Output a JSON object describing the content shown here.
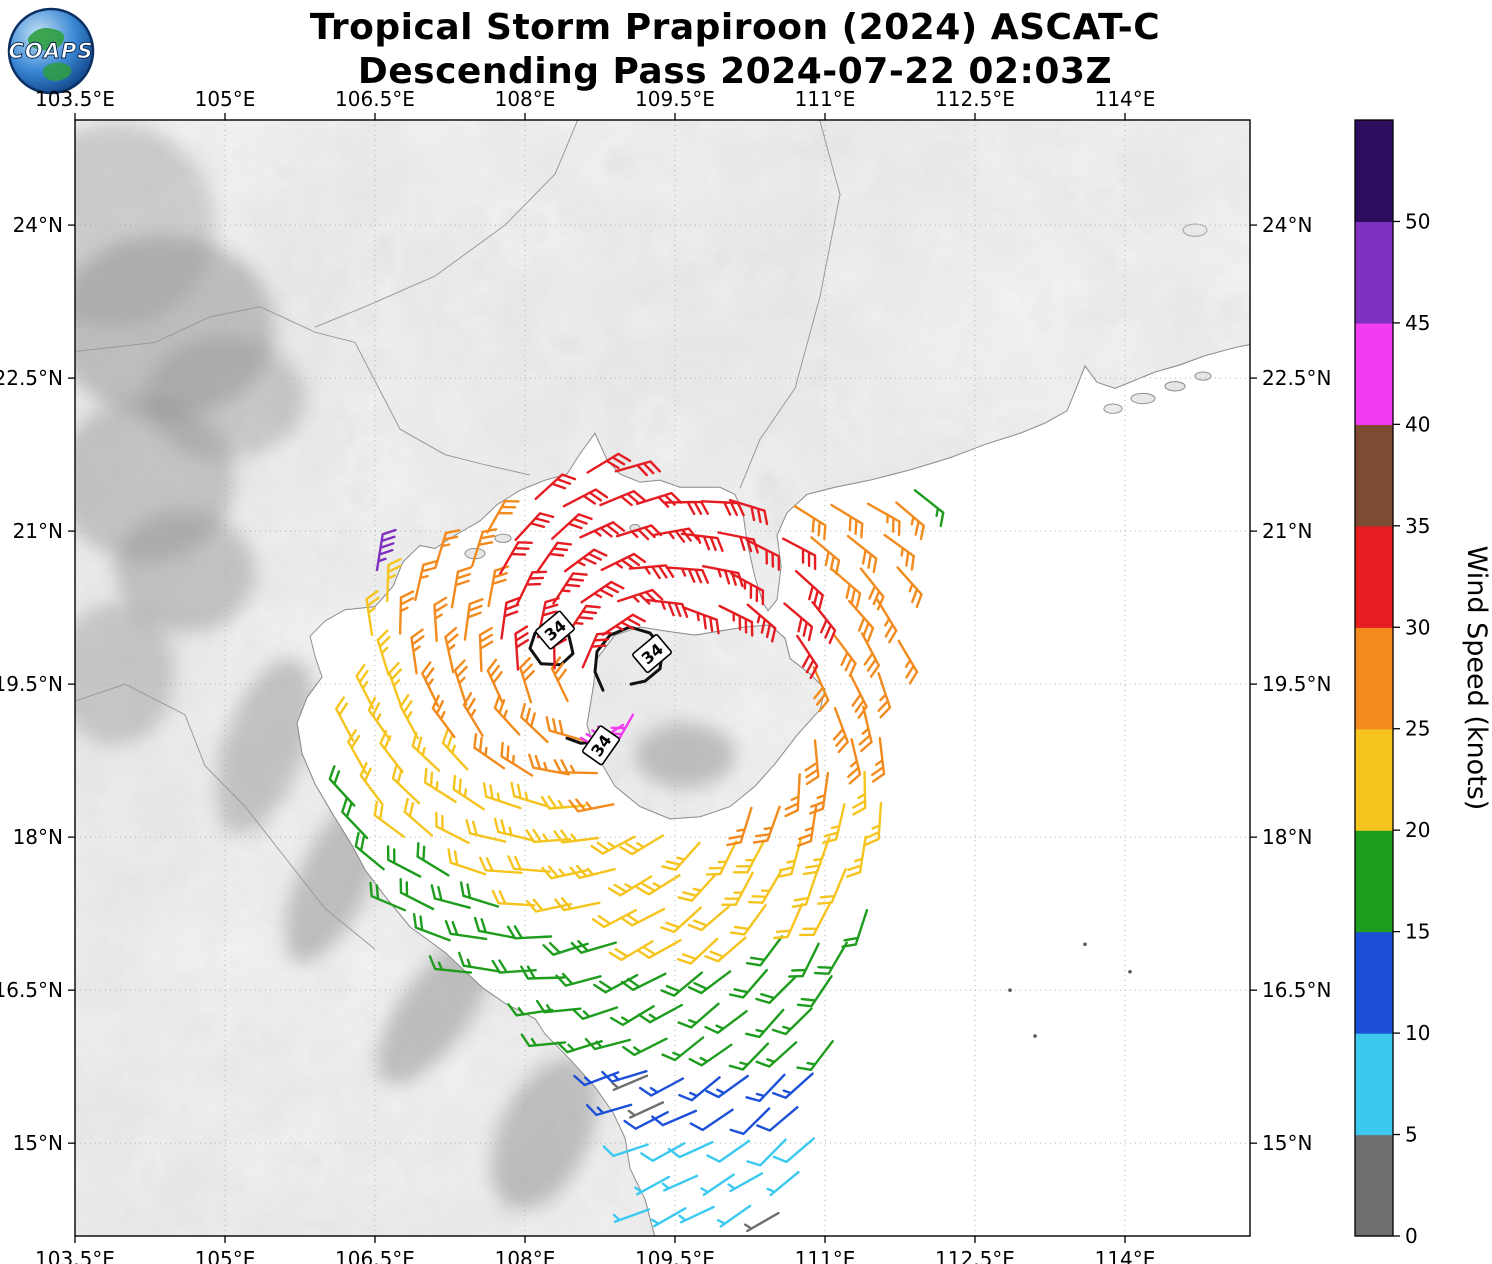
{
  "title": {
    "line1": "Tropical Storm Prapiroon (2024) ASCAT-C",
    "line2": "Descending Pass 2024-07-22 02:03Z"
  },
  "logo": {
    "text": "COAPS"
  },
  "map": {
    "lon_min": 103.5,
    "lon_max": 115.25,
    "lat_min": 14.09,
    "lat_max": 25.03,
    "x_ticks": [
      {
        "lon": 103.5,
        "label": "103.5°E"
      },
      {
        "lon": 105,
        "label": "105°E"
      },
      {
        "lon": 106.5,
        "label": "106.5°E"
      },
      {
        "lon": 108,
        "label": "108°E"
      },
      {
        "lon": 109.5,
        "label": "109.5°E"
      },
      {
        "lon": 111,
        "label": "111°E"
      },
      {
        "lon": 112.5,
        "label": "112.5°E"
      },
      {
        "lon": 114,
        "label": "114°E"
      }
    ],
    "y_ticks": [
      {
        "lat": 24,
        "label": "24°N"
      },
      {
        "lat": 22.5,
        "label": "22.5°N"
      },
      {
        "lat": 21,
        "label": "21°N"
      },
      {
        "lat": 19.5,
        "label": "19.5°N"
      },
      {
        "lat": 18,
        "label": "18°N"
      },
      {
        "lat": 16.5,
        "label": "16.5°N"
      },
      {
        "lat": 15,
        "label": "15°N"
      }
    ]
  },
  "colorbar": {
    "label": "Wind Speed (knots)",
    "max": 55,
    "ticks": [
      0,
      5,
      10,
      15,
      20,
      25,
      30,
      35,
      40,
      45,
      50
    ],
    "segments": [
      {
        "from": 0,
        "to": 5,
        "color": "#6e6e6e"
      },
      {
        "from": 5,
        "to": 10,
        "color": "#3CC9F0"
      },
      {
        "from": 10,
        "to": 15,
        "color": "#1D50D8"
      },
      {
        "from": 15,
        "to": 20,
        "color": "#1E9C1E"
      },
      {
        "from": 20,
        "to": 25,
        "color": "#F5C41E"
      },
      {
        "from": 25,
        "to": 30,
        "color": "#F28A1E"
      },
      {
        "from": 30,
        "to": 35,
        "color": "#E51D23"
      },
      {
        "from": 35,
        "to": 40,
        "color": "#7D4A32"
      },
      {
        "from": 40,
        "to": 45,
        "color": "#F23CF2"
      },
      {
        "from": 45,
        "to": 50,
        "color": "#8030C0"
      },
      {
        "from": 50,
        "to": 55,
        "color": "#2E0D5E"
      }
    ]
  },
  "chart_data": {
    "type": "wind_barb_map",
    "title": "Tropical Storm Prapiroon (2024) ASCAT-C — Descending Pass 2024-07-22 02:03Z",
    "satellite": "ASCAT-C",
    "units": "knots",
    "storm": {
      "name": "Prapiroon",
      "season": 2024,
      "center_lon": 108.9,
      "center_lat": 19.4
    },
    "wind_contour_knots": 34,
    "wind_profile": [
      {
        "r": 0,
        "kt": 30
      },
      {
        "r": 0.8,
        "kt": 32
      },
      {
        "r": 1.6,
        "kt": 29
      },
      {
        "r": 2.4,
        "kt": 25.5
      },
      {
        "r": 3.2,
        "kt": 22
      },
      {
        "r": 4.0,
        "kt": 19
      },
      {
        "r": 4.8,
        "kt": 14
      },
      {
        "r": 5.6,
        "kt": 10
      },
      {
        "r": 6.4,
        "kt": 7
      },
      {
        "r": 8,
        "kt": 5
      }
    ],
    "swath": {
      "lat_min": 14.35,
      "lat_max": 21.72,
      "dlat": 0.33,
      "lon_min": 105.95,
      "lon_max": 112.1,
      "dlon": 0.33,
      "left_edge": 106.28,
      "right_top": 111.95,
      "right_mid": 111.58
    },
    "extra_barbs": [
      {
        "lon": 108.98,
        "lat": 19.1,
        "speed": 42
      },
      {
        "lon": 109.08,
        "lat": 19.2,
        "speed": 41
      },
      {
        "lon": 106.52,
        "lat": 20.62,
        "speed": 46
      },
      {
        "lon": 111.9,
        "lat": 21.4,
        "speed": 17
      },
      {
        "lon": 109.22,
        "lat": 15.66,
        "speed": 3
      },
      {
        "lon": 109.38,
        "lat": 15.4,
        "speed": 4
      }
    ],
    "contours": {
      "paths": [
        {
          "closed": true,
          "points": [
            [
              108.05,
              19.85
            ],
            [
              108.1,
              20.0
            ],
            [
              108.28,
              20.06
            ],
            [
              108.44,
              19.97
            ],
            [
              108.48,
              19.8
            ],
            [
              108.36,
              19.69
            ],
            [
              108.16,
              19.7
            ]
          ]
        },
        {
          "closed": false,
          "points": [
            [
              108.78,
              19.44
            ],
            [
              108.7,
              19.62
            ],
            [
              108.72,
              19.82
            ],
            [
              108.85,
              19.98
            ],
            [
              109.05,
              20.06
            ],
            [
              109.25,
              20.0
            ],
            [
              109.38,
              19.85
            ],
            [
              109.35,
              19.65
            ],
            [
              109.2,
              19.53
            ],
            [
              109.06,
              19.5
            ]
          ]
        },
        {
          "closed": false,
          "points": [
            [
              108.42,
              18.97
            ],
            [
              108.56,
              18.92
            ],
            [
              108.68,
              18.93
            ]
          ]
        }
      ],
      "labels": [
        {
          "lon": 108.3,
          "lat": 20.03,
          "rot": -40,
          "text": "34"
        },
        {
          "lon": 109.27,
          "lat": 19.8,
          "rot": -40,
          "text": "34"
        },
        {
          "lon": 108.76,
          "lat": 18.9,
          "rot": -55,
          "text": "34"
        }
      ]
    },
    "geometry": {
      "mainland": [
        [
          103.4,
          14.0
        ],
        [
          109.32,
          14.0
        ],
        [
          109.2,
          14.45
        ],
        [
          109.05,
          14.75
        ],
        [
          109.0,
          15.05
        ],
        [
          108.88,
          15.3
        ],
        [
          108.7,
          15.55
        ],
        [
          108.45,
          15.82
        ],
        [
          108.2,
          16.07
        ],
        [
          108.1,
          16.22
        ],
        [
          107.8,
          16.37
        ],
        [
          107.58,
          16.52
        ],
        [
          107.2,
          16.87
        ],
        [
          106.85,
          17.12
        ],
        [
          106.6,
          17.42
        ],
        [
          106.4,
          17.68
        ],
        [
          106.27,
          17.92
        ],
        [
          106.08,
          18.22
        ],
        [
          105.9,
          18.52
        ],
        [
          105.77,
          18.82
        ],
        [
          105.72,
          19.12
        ],
        [
          105.82,
          19.37
        ],
        [
          105.97,
          19.57
        ],
        [
          105.9,
          19.77
        ],
        [
          105.85,
          19.97
        ],
        [
          106.0,
          20.12
        ],
        [
          106.2,
          20.23
        ],
        [
          106.5,
          20.26
        ],
        [
          106.68,
          20.46
        ],
        [
          106.78,
          20.7
        ],
        [
          106.95,
          20.86
        ],
        [
          107.1,
          20.83
        ],
        [
          107.3,
          20.96
        ],
        [
          107.55,
          21.1
        ],
        [
          107.72,
          21.26
        ],
        [
          107.95,
          21.4
        ],
        [
          108.2,
          21.5
        ],
        [
          108.42,
          21.56
        ],
        [
          108.55,
          21.76
        ],
        [
          108.7,
          21.96
        ],
        [
          108.82,
          21.7
        ],
        [
          108.95,
          21.56
        ],
        [
          109.15,
          21.48
        ],
        [
          109.35,
          21.5
        ],
        [
          109.55,
          21.43
        ],
        [
          109.75,
          21.43
        ],
        [
          109.95,
          21.43
        ],
        [
          110.1,
          21.36
        ],
        [
          110.18,
          21.18
        ],
        [
          110.22,
          20.9
        ],
        [
          110.3,
          20.55
        ],
        [
          110.38,
          20.3
        ],
        [
          110.43,
          20.22
        ],
        [
          110.52,
          20.33
        ],
        [
          110.56,
          20.65
        ],
        [
          110.52,
          20.96
        ],
        [
          110.62,
          21.18
        ],
        [
          110.82,
          21.36
        ],
        [
          111.1,
          21.43
        ],
        [
          111.45,
          21.5
        ],
        [
          111.85,
          21.6
        ],
        [
          112.25,
          21.72
        ],
        [
          112.6,
          21.85
        ],
        [
          112.95,
          21.96
        ],
        [
          113.2,
          22.06
        ],
        [
          113.42,
          22.18
        ],
        [
          113.52,
          22.42
        ],
        [
          113.6,
          22.62
        ],
        [
          113.72,
          22.46
        ],
        [
          113.9,
          22.4
        ],
        [
          114.1,
          22.48
        ],
        [
          114.3,
          22.56
        ],
        [
          114.55,
          22.63
        ],
        [
          114.8,
          22.72
        ],
        [
          115.1,
          22.8
        ],
        [
          115.4,
          22.86
        ],
        [
          115.4,
          25.2
        ],
        [
          103.4,
          25.2
        ]
      ],
      "hainan": [
        [
          108.68,
          19.45
        ],
        [
          108.62,
          19.1
        ],
        [
          108.72,
          18.8
        ],
        [
          108.9,
          18.5
        ],
        [
          109.15,
          18.3
        ],
        [
          109.45,
          18.18
        ],
        [
          109.75,
          18.2
        ],
        [
          110.05,
          18.3
        ],
        [
          110.3,
          18.5
        ],
        [
          110.5,
          18.72
        ],
        [
          110.72,
          19.0
        ],
        [
          110.95,
          19.25
        ],
        [
          111.0,
          19.45
        ],
        [
          110.85,
          19.6
        ],
        [
          110.65,
          19.75
        ],
        [
          110.6,
          19.95
        ],
        [
          110.45,
          20.08
        ],
        [
          110.2,
          20.06
        ],
        [
          109.95,
          20.02
        ],
        [
          109.7,
          19.98
        ],
        [
          109.4,
          20.02
        ],
        [
          109.15,
          20.06
        ],
        [
          108.9,
          19.98
        ],
        [
          108.72,
          19.75
        ]
      ],
      "islands": [
        [
          113.88,
          22.2,
          0.09,
          0.045
        ],
        [
          114.18,
          22.3,
          0.12,
          0.05
        ],
        [
          114.5,
          22.42,
          0.1,
          0.045
        ],
        [
          114.78,
          22.52,
          0.08,
          0.04
        ],
        [
          107.5,
          20.78,
          0.1,
          0.05
        ],
        [
          107.78,
          20.93,
          0.08,
          0.04
        ],
        [
          114.7,
          23.95,
          0.12,
          0.06
        ],
        [
          109.1,
          21.03,
          0.05,
          0.035
        ]
      ],
      "paracel_dots": [
        [
          113.6,
          16.95
        ],
        [
          114.05,
          16.68
        ],
        [
          112.85,
          16.5
        ],
        [
          113.1,
          16.05
        ]
      ],
      "borders": [
        [
          [
            103.4,
            22.75
          ],
          [
            104.3,
            22.85
          ],
          [
            104.85,
            23.1
          ],
          [
            105.35,
            23.2
          ],
          [
            105.9,
            22.95
          ],
          [
            106.3,
            22.85
          ],
          [
            106.75,
            22.0
          ],
          [
            107.2,
            21.75
          ],
          [
            107.6,
            21.65
          ],
          [
            108.05,
            21.55
          ]
        ],
        [
          [
            110.9,
            25.2
          ],
          [
            111.15,
            24.3
          ],
          [
            110.95,
            23.3
          ],
          [
            110.7,
            22.4
          ],
          [
            110.35,
            21.9
          ],
          [
            110.15,
            21.42
          ]
        ],
        [
          [
            108.6,
            25.2
          ],
          [
            108.3,
            24.5
          ],
          [
            107.8,
            24.0
          ],
          [
            107.1,
            23.5
          ],
          [
            106.4,
            23.2
          ],
          [
            105.9,
            23.0
          ]
        ],
        [
          [
            103.4,
            19.3
          ],
          [
            104.0,
            19.5
          ],
          [
            104.6,
            19.2
          ],
          [
            104.8,
            18.7
          ],
          [
            105.2,
            18.3
          ],
          [
            105.6,
            17.8
          ],
          [
            106.0,
            17.3
          ],
          [
            106.5,
            16.9
          ]
        ]
      ],
      "terrain_shading": [
        [
          104.4,
          23.0,
          1.1,
          0.9,
          0,
          0.5
        ],
        [
          104.2,
          21.5,
          0.9,
          0.8,
          0,
          0.45
        ],
        [
          105.0,
          22.3,
          0.8,
          0.6,
          0,
          0.4
        ],
        [
          104.6,
          20.6,
          0.7,
          0.6,
          0,
          0.45
        ],
        [
          103.9,
          24.0,
          1.0,
          1.0,
          0,
          0.35
        ],
        [
          103.9,
          19.6,
          0.6,
          0.7,
          0,
          0.4
        ],
        [
          105.4,
          18.9,
          0.4,
          0.9,
          20,
          0.45
        ],
        [
          106.1,
          17.6,
          0.35,
          0.9,
          25,
          0.5
        ],
        [
          107.1,
          16.3,
          0.35,
          0.85,
          35,
          0.5
        ],
        [
          108.2,
          15.1,
          0.45,
          0.8,
          25,
          0.5
        ],
        [
          109.6,
          18.8,
          0.5,
          0.32,
          0,
          0.5
        ]
      ]
    }
  }
}
